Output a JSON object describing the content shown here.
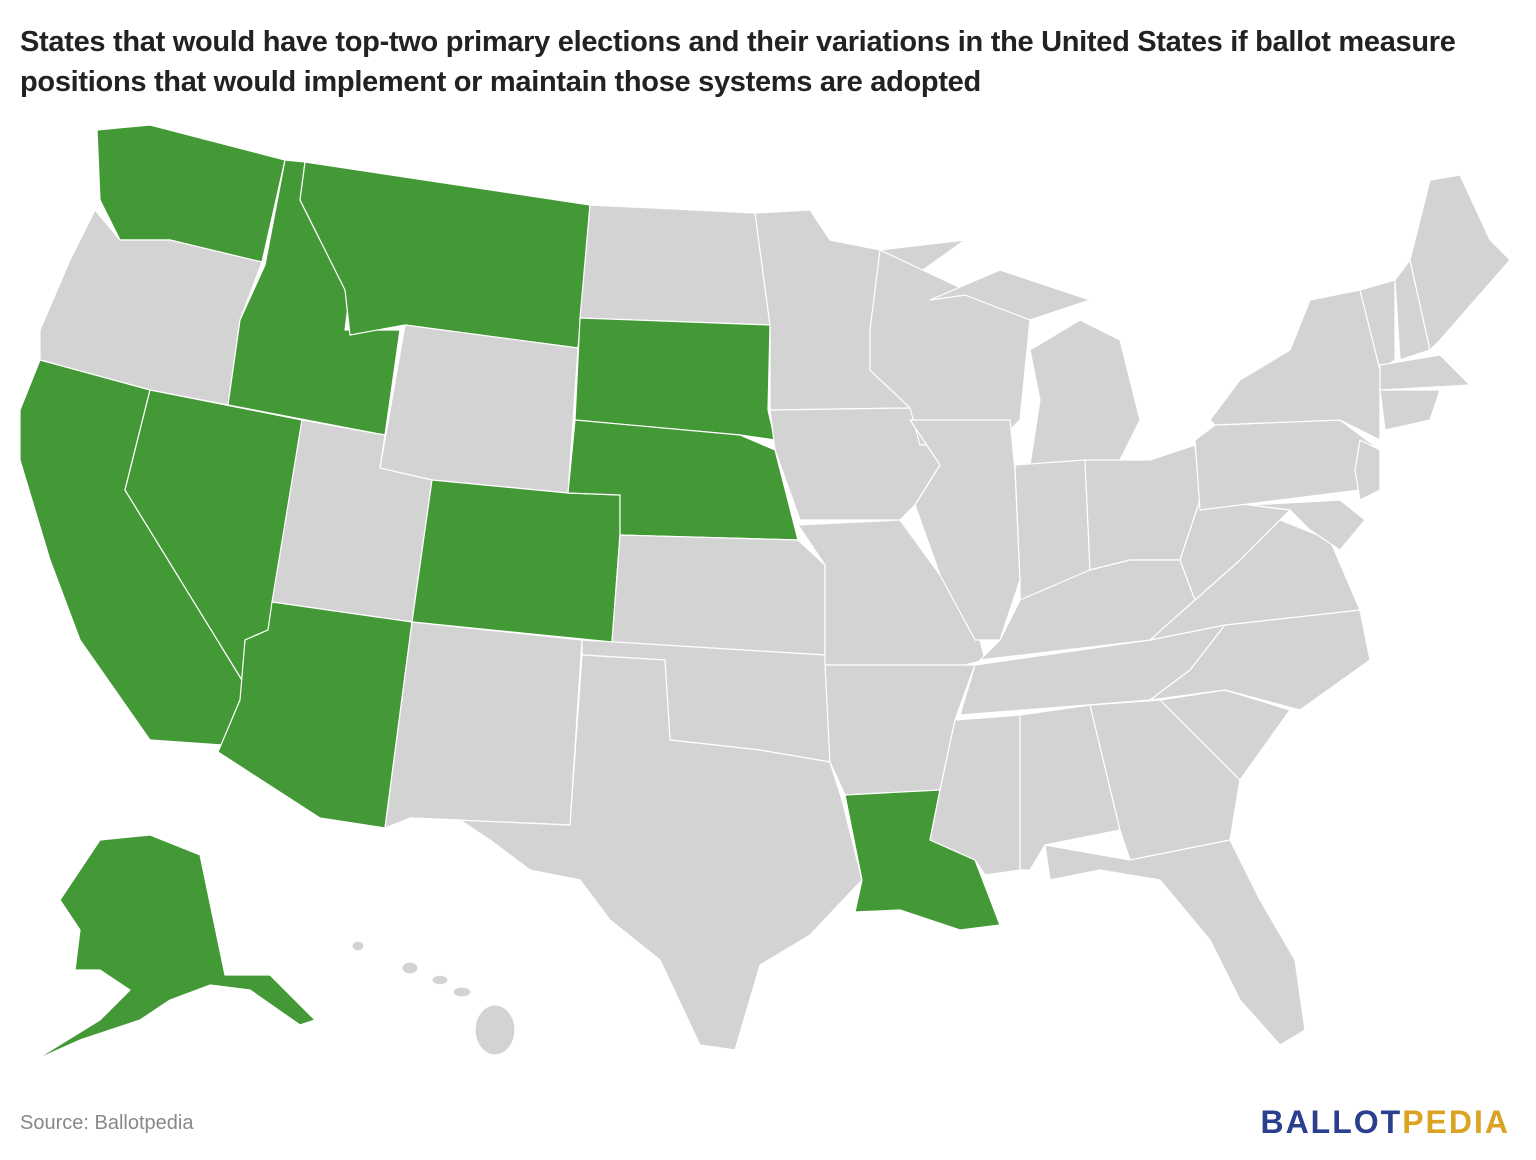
{
  "header": {
    "title": "States that would have top-two primary elections and their variations in the United States if ballot measure positions that would implement or maintain those systems are adopted"
  },
  "footer": {
    "source": "Source: Ballotpedia",
    "logo_left": "BALLOT",
    "logo_right": "PEDIA"
  }
}
